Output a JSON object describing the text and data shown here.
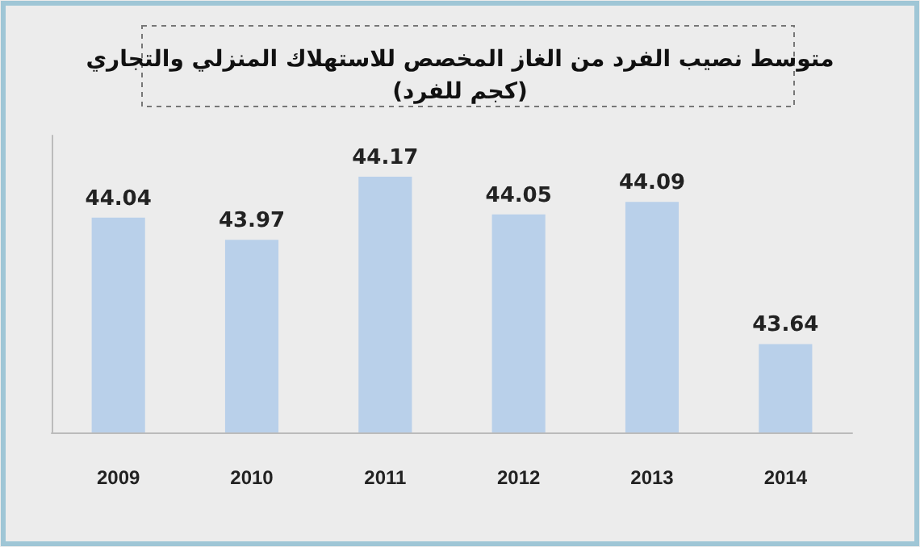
{
  "chart_data": {
    "type": "bar",
    "title": "متوسط نصيب الفرد من الغاز المخصص للاستهلاك المنزلي والتجاري\n(كجم للفرد)",
    "categories": [
      "2009",
      "2010",
      "2011",
      "2012",
      "2013",
      "2014"
    ],
    "values": [
      44.04,
      43.97,
      44.17,
      44.05,
      44.09,
      43.64
    ],
    "color": "#b9d0ea",
    "ylim": [
      43.36,
      44.3
    ],
    "tick_labels": "x",
    "data_labels": true
  }
}
